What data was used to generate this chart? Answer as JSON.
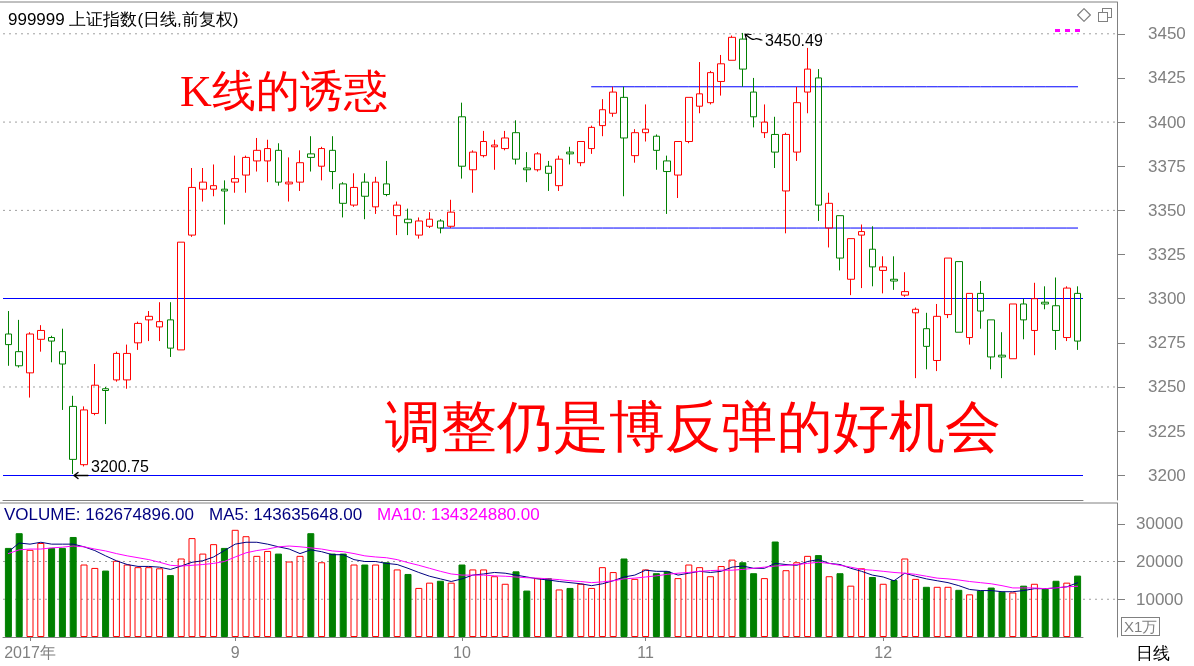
{
  "chart_data": [
    {
      "type": "candlestick",
      "title": "999999 上证指数(日线,前复权)",
      "categories": [
        null,
        null,
        null,
        null,
        null,
        null,
        null,
        null,
        null,
        null,
        null,
        null,
        null,
        null,
        null,
        null,
        null,
        null,
        null,
        null,
        null,
        null,
        null,
        null,
        null,
        null,
        null,
        null,
        null,
        null,
        null,
        null,
        null,
        null,
        null,
        null,
        null,
        null,
        null,
        null,
        null,
        null,
        null,
        null,
        null,
        null,
        null,
        null,
        null,
        null,
        null,
        null,
        null,
        null,
        null,
        null,
        null,
        null,
        null,
        null,
        null,
        null,
        null,
        null,
        null,
        null,
        null,
        null,
        null,
        null,
        null,
        null,
        null,
        null,
        null,
        null,
        null,
        null,
        null,
        null,
        null,
        null,
        null,
        null,
        null,
        null,
        null,
        null,
        null,
        null,
        null,
        null,
        null,
        null,
        null,
        null,
        null,
        null,
        null,
        null
      ],
      "series": [
        {
          "ohlc": [
            [
              3280,
              3293,
              3262,
              3274
            ],
            [
              3270,
              3288,
              3261,
              3262
            ],
            [
              3258,
              3281,
              3244,
              3280
            ],
            [
              3277,
              3285,
              3270,
              3282
            ],
            [
              3278,
              3279,
              3264,
              3276
            ],
            [
              3270,
              3283,
              3237,
              3263
            ],
            [
              3239,
              3245,
              3200.75,
              3209
            ],
            [
              3206,
              3239,
              3205,
              3237
            ],
            [
              3235,
              3263,
              3234,
              3251
            ],
            [
              3249,
              3250,
              3229,
              3248
            ],
            [
              3254,
              3270,
              3253,
              3269
            ],
            [
              3254,
              3274,
              3249,
              3269
            ],
            [
              3275,
              3287,
              3271,
              3286
            ],
            [
              3288,
              3293,
              3276,
              3290
            ],
            [
              3284,
              3298,
              3276,
              3287
            ],
            [
              3288,
              3298,
              3267,
              3272
            ],
            [
              3271,
              3332,
              3271,
              3332
            ],
            [
              3336,
              3374,
              3335,
              3363
            ],
            [
              3362,
              3374,
              3355,
              3366
            ],
            [
              3362,
              3376,
              3358,
              3364
            ],
            [
              3362,
              3367,
              3342,
              3361
            ],
            [
              3366,
              3381,
              3360,
              3368
            ],
            [
              3370,
              3381,
              3360,
              3380
            ],
            [
              3378,
              3391,
              3372,
              3384
            ],
            [
              3378,
              3390,
              3366,
              3385
            ],
            [
              3384,
              3388,
              3364,
              3366
            ],
            [
              3365,
              3380,
              3355,
              3366
            ],
            [
              3366,
              3384,
              3361,
              3377
            ],
            [
              3382,
              3392,
              3372,
              3380
            ],
            [
              3375,
              3386,
              3367,
              3385
            ],
            [
              3384,
              3392,
              3362,
              3372
            ],
            [
              3365,
              3366,
              3346,
              3354
            ],
            [
              3353,
              3371,
              3352,
              3363
            ],
            [
              3366,
              3371,
              3345,
              3358
            ],
            [
              3352,
              3369,
              3348,
              3366
            ],
            [
              3365,
              3378,
              3358,
              3359
            ],
            [
              3347,
              3355,
              3336,
              3353
            ],
            [
              3345,
              3351,
              3336,
              3343
            ],
            [
              3336,
              3346,
              3334,
              3344
            ],
            [
              3341,
              3349,
              3340,
              3345
            ],
            [
              3344,
              3345,
              3337,
              3340
            ],
            [
              3341,
              3356,
              3340,
              3349
            ],
            [
              3403,
              3411,
              3368,
              3375
            ],
            [
              3373,
              3384,
              3360,
              3383
            ],
            [
              3381,
              3395,
              3380,
              3389
            ],
            [
              3386,
              3390,
              3373,
              3387
            ],
            [
              3385,
              3395,
              3384,
              3391
            ],
            [
              3394,
              3401,
              3376,
              3379
            ],
            [
              3374,
              3383,
              3366,
              3373
            ],
            [
              3373,
              3383,
              3372,
              3382
            ],
            [
              3375,
              3378,
              3361,
              3371
            ],
            [
              3364,
              3381,
              3361,
              3379
            ],
            [
              3383,
              3386,
              3376,
              3382
            ],
            [
              3377,
              3389,
              3375,
              3389
            ],
            [
              3385,
              3398,
              3382,
              3397
            ],
            [
              3398,
              3413,
              3392,
              3407
            ],
            [
              3405,
              3420,
              3403,
              3417
            ],
            [
              3414,
              3420,
              3358,
              3391
            ],
            [
              3381,
              3396,
              3377,
              3394
            ],
            [
              3394,
              3410,
              3389,
              3396
            ],
            [
              3392,
              3393,
              3373,
              3384
            ],
            [
              3378,
              3381,
              3348,
              3372
            ],
            [
              3370,
              3389,
              3357,
              3389
            ],
            [
              3389,
              3414,
              3388,
              3414
            ],
            [
              3409,
              3434,
              3405,
              3416
            ],
            [
              3411,
              3429,
              3410,
              3428
            ],
            [
              3423,
              3438,
              3415,
              3433
            ],
            [
              3435,
              3449,
              3435,
              3448
            ],
            [
              3447,
              3450.49,
              3420,
              3430
            ],
            [
              3417,
              3425,
              3397,
              3403
            ],
            [
              3394,
              3410,
              3391,
              3400
            ],
            [
              3393,
              3403,
              3374,
              3383
            ],
            [
              3361,
              3394,
              3337,
              3393
            ],
            [
              3383,
              3420,
              3378,
              3411
            ],
            [
              3417,
              3442,
              3405,
              3430
            ],
            [
              3425,
              3430,
              3344,
              3353
            ],
            [
              3340,
              3360,
              3329,
              3354
            ],
            [
              3347,
              3347,
              3316,
              3323
            ],
            [
              3311,
              3334,
              3302,
              3334
            ],
            [
              3336,
              3342,
              3306,
              3338
            ],
            [
              3328,
              3341,
              3307,
              3318
            ],
            [
              3316,
              3324,
              3303,
              3318
            ],
            [
              3311,
              3324,
              3305,
              3310
            ],
            [
              3302,
              3315,
              3301,
              3304
            ],
            [
              3292,
              3295,
              3255,
              3294
            ],
            [
              3283,
              3292,
              3260,
              3273
            ],
            [
              3265,
              3297,
              3259,
              3290
            ],
            [
              3291,
              3323,
              3289,
              3323
            ],
            [
              3321,
              3321,
              3281,
              3281
            ],
            [
              3278,
              3303,
              3274,
              3303
            ],
            [
              3303,
              3310,
              3283,
              3293
            ],
            [
              3288,
              3288,
              3260,
              3267
            ],
            [
              3268,
              3281,
              3255,
              3267
            ],
            [
              3266,
              3297,
              3266,
              3297
            ],
            [
              3297,
              3300,
              3277,
              3288
            ],
            [
              3282,
              3309,
              3268,
              3300
            ],
            [
              3298,
              3307,
              3294,
              3297
            ],
            [
              3296,
              3312,
              3271,
              3282
            ],
            [
              3278,
              3307,
              3276,
              3306
            ],
            [
              3303,
              3307,
              3271,
              3276
            ]
          ],
          "colors": [
            "#008000",
            "#008000",
            "#ff0000",
            "#ff0000",
            "#008000",
            "#008000",
            "#008000",
            "#ff0000",
            "#ff0000",
            "#008000",
            "#ff0000",
            "#ff0000",
            "#ff0000",
            "#ff0000",
            "#ff0000",
            "#008000",
            "#ff0000",
            "#ff0000",
            "#ff0000",
            "#ff0000",
            "#008000",
            "#ff0000",
            "#ff0000",
            "#ff0000",
            "#ff0000",
            "#008000",
            "#ff0000",
            "#ff0000",
            "#008000",
            "#ff0000",
            "#008000",
            "#008000",
            "#ff0000",
            "#008000",
            "#ff0000",
            "#008000",
            "#ff0000",
            "#008000",
            "#ff0000",
            "#ff0000",
            "#008000",
            "#ff0000",
            "#008000",
            "#ff0000",
            "#ff0000",
            "#ff0000",
            "#ff0000",
            "#008000",
            "#008000",
            "#ff0000",
            "#008000",
            "#ff0000",
            "#008000",
            "#ff0000",
            "#ff0000",
            "#ff0000",
            "#ff0000",
            "#008000",
            "#ff0000",
            "#ff0000",
            "#008000",
            "#008000",
            "#ff0000",
            "#ff0000",
            "#ff0000",
            "#ff0000",
            "#ff0000",
            "#ff0000",
            "#008000",
            "#008000",
            "#ff0000",
            "#008000",
            "#ff0000",
            "#ff0000",
            "#ff0000",
            "#008000",
            "#ff0000",
            "#008000",
            "#ff0000",
            "#ff0000",
            "#008000",
            "#ff0000",
            "#008000",
            "#ff0000",
            "#ff0000",
            "#008000",
            "#ff0000",
            "#ff0000",
            "#008000",
            "#ff0000",
            "#008000",
            "#008000",
            "#008000",
            "#ff0000",
            "#008000",
            "#ff0000",
            "#008000",
            "#008000",
            "#ff0000",
            "#008000"
          ]
        },
        {
          "type": "line",
          "color": "#0000ff",
          "values": [
            null,
            null,
            null,
            null,
            null,
            null,
            null,
            null,
            null,
            null,
            null,
            null,
            null,
            null,
            null,
            null,
            null,
            null,
            null,
            null,
            null,
            null,
            null,
            null,
            null,
            null,
            null,
            null,
            null,
            null,
            null,
            null,
            null,
            null,
            null,
            null,
            null,
            null,
            null,
            null,
            null,
            null,
            null,
            null,
            null,
            null,
            null,
            null,
            null,
            null,
            null,
            null,
            null,
            null,
            3420,
            3420,
            3420,
            3420,
            3420,
            3420,
            3420,
            3420,
            3420,
            3420,
            3420,
            3420,
            3420,
            3420,
            3420,
            3420,
            3420,
            3420,
            3420,
            3420,
            3420,
            3420,
            3420,
            3420,
            3420,
            3420,
            3420,
            3420,
            3420,
            3420,
            3420,
            3420,
            3420,
            3420,
            3420,
            3420,
            3420,
            3420,
            3420,
            3420,
            3420,
            3420,
            3420,
            3420,
            3420,
            3420
          ]
        },
        {
          "type": "line",
          "color": "#0000ff",
          "values": [
            null,
            null,
            null,
            null,
            null,
            null,
            null,
            null,
            null,
            null,
            null,
            null,
            null,
            null,
            null,
            null,
            null,
            null,
            null,
            null,
            null,
            null,
            null,
            null,
            null,
            null,
            null,
            null,
            null,
            null,
            null,
            null,
            null,
            null,
            null,
            null,
            null,
            null,
            null,
            null,
            3340,
            3340,
            3340,
            3340,
            3340,
            3340,
            3340,
            3340,
            3340,
            3340,
            3340,
            3340,
            3340,
            3340,
            3340,
            3340,
            3340,
            3340,
            3340,
            3340,
            3340,
            3340,
            3340,
            3340,
            3340,
            3340,
            3340,
            3340,
            3340,
            3340,
            3340,
            3340,
            3340,
            3340,
            3340,
            3340,
            3340,
            3340,
            3340,
            3340,
            3340,
            3340,
            3340,
            3340,
            3340,
            3340,
            3340,
            3340,
            3340,
            3340,
            3340,
            3340,
            3340,
            3340,
            3340,
            3340,
            3340,
            3340,
            3340,
            3340
          ]
        }
      ],
      "ylim": [
        3186,
        3468
      ],
      "yticks": [
        3200,
        3225,
        3250,
        3275,
        3300,
        3325,
        3350,
        3375,
        3400,
        3425,
        3450
      ],
      "grid": "y",
      "tick_labels": "y",
      "ref_lines": [
        {
          "axis": "y",
          "value": 3300,
          "color": "#0000ff"
        },
        {
          "axis": "y",
          "value": 3200,
          "color": "#0000ff"
        }
      ],
      "annotations": [
        "K线的诱惑",
        "调整仍是博反弹的好机会",
        "3450.49",
        "3200.75"
      ]
    },
    {
      "type": "bar",
      "categories": [
        null,
        null,
        "2017年",
        null,
        null,
        null,
        null,
        null,
        null,
        null,
        null,
        null,
        null,
        null,
        null,
        null,
        null,
        null,
        null,
        null,
        null,
        "9",
        null,
        null,
        null,
        null,
        null,
        null,
        null,
        null,
        null,
        null,
        null,
        null,
        null,
        null,
        null,
        null,
        null,
        null,
        null,
        null,
        "10",
        null,
        null,
        null,
        null,
        null,
        null,
        null,
        null,
        null,
        null,
        null,
        null,
        null,
        null,
        null,
        null,
        "11",
        null,
        null,
        null,
        null,
        null,
        null,
        null,
        null,
        null,
        null,
        null,
        null,
        null,
        null,
        null,
        null,
        null,
        null,
        null,
        null,
        null,
        "12",
        null,
        null,
        null,
        null,
        null,
        null,
        null,
        null,
        null,
        null,
        null,
        null,
        null,
        null,
        null,
        null,
        null,
        null
      ],
      "series": [
        {
          "values": [
            23600,
            27500,
            23100,
            24900,
            23600,
            23600,
            26500,
            19200,
            18300,
            17600,
            20200,
            19200,
            18500,
            18500,
            18200,
            16400,
            20800,
            26200,
            22100,
            24600,
            23600,
            28400,
            26700,
            21500,
            22800,
            22100,
            20000,
            21500,
            27500,
            19800,
            22100,
            22100,
            19200,
            19200,
            19200,
            19800,
            17900,
            16700,
            13000,
            14400,
            14900,
            14400,
            19200,
            17900,
            17900,
            16100,
            14100,
            17400,
            12300,
            15600,
            15600,
            12600,
            13000,
            14100,
            13000,
            18500,
            17200,
            20800,
            15400,
            17900,
            16900,
            17400,
            15600,
            19200,
            18500,
            16100,
            18800,
            20500,
            19800,
            16900,
            15600,
            25300,
            17700,
            19800,
            21500,
            21700,
            16100,
            16900,
            13600,
            18200,
            15900,
            14100,
            15100,
            20800,
            15400,
            13300,
            13300,
            13300,
            12500,
            11300,
            12300,
            13100,
            12000,
            11800,
            13600,
            14100,
            12800,
            14900,
            14400,
            16267.4896
          ],
          "colors": [
            "#008000",
            "#008000",
            "#ff0000",
            "#ff0000",
            "#008000",
            "#008000",
            "#008000",
            "#ff0000",
            "#ff0000",
            "#008000",
            "#ff0000",
            "#ff0000",
            "#ff0000",
            "#ff0000",
            "#ff0000",
            "#008000",
            "#ff0000",
            "#ff0000",
            "#ff0000",
            "#ff0000",
            "#008000",
            "#ff0000",
            "#ff0000",
            "#ff0000",
            "#ff0000",
            "#008000",
            "#ff0000",
            "#ff0000",
            "#008000",
            "#ff0000",
            "#008000",
            "#008000",
            "#ff0000",
            "#008000",
            "#ff0000",
            "#008000",
            "#ff0000",
            "#008000",
            "#ff0000",
            "#ff0000",
            "#008000",
            "#ff0000",
            "#008000",
            "#ff0000",
            "#ff0000",
            "#ff0000",
            "#ff0000",
            "#008000",
            "#008000",
            "#ff0000",
            "#008000",
            "#ff0000",
            "#008000",
            "#ff0000",
            "#ff0000",
            "#ff0000",
            "#ff0000",
            "#008000",
            "#ff0000",
            "#ff0000",
            "#008000",
            "#008000",
            "#ff0000",
            "#ff0000",
            "#ff0000",
            "#ff0000",
            "#ff0000",
            "#ff0000",
            "#008000",
            "#008000",
            "#ff0000",
            "#008000",
            "#ff0000",
            "#ff0000",
            "#ff0000",
            "#008000",
            "#ff0000",
            "#008000",
            "#ff0000",
            "#ff0000",
            "#008000",
            "#ff0000",
            "#008000",
            "#ff0000",
            "#ff0000",
            "#008000",
            "#ff0000",
            "#ff0000",
            "#008000",
            "#ff0000",
            "#008000",
            "#008000",
            "#008000",
            "#ff0000",
            "#008000",
            "#ff0000",
            "#008000",
            "#008000",
            "#ff0000",
            "#008000"
          ]
        },
        {
          "type": "line",
          "name": "MA5: 143635648.00",
          "color": "#000080",
          "values": [
            22600,
            24900,
            24600,
            25100,
            24600,
            24600,
            24600,
            23900,
            22900,
            21500,
            20200,
            19200,
            18700,
            18700,
            18500,
            17900,
            18800,
            19800,
            20200,
            21200,
            22900,
            24600,
            25100,
            25100,
            24600,
            23900,
            23300,
            22100,
            23100,
            22600,
            21800,
            21800,
            20500,
            20000,
            20000,
            19500,
            19200,
            18200,
            17100,
            16100,
            15400,
            14700,
            15400,
            16400,
            16700,
            17100,
            16900,
            16400,
            15900,
            15400,
            15100,
            14700,
            14400,
            14100,
            13600,
            14100,
            14900,
            15900,
            16400,
            17700,
            17400,
            17400,
            16400,
            16900,
            17400,
            17100,
            17400,
            18500,
            18800,
            18200,
            18200,
            19500,
            19200,
            19000,
            20000,
            20500,
            19500,
            19200,
            18200,
            17400,
            16400,
            15900,
            14900,
            16900,
            16100,
            15400,
            14900,
            14400,
            13600,
            12600,
            12300,
            12300,
            12000,
            12000,
            12300,
            12800,
            12800,
            13000,
            13300,
            14363.5648
          ]
        },
        {
          "type": "line",
          "name": "MA10: 134324880.00",
          "color": "#ff00ff",
          "values": [
            22100,
            23100,
            23300,
            23300,
            23600,
            23800,
            24100,
            23900,
            23300,
            22800,
            22100,
            21500,
            21000,
            20500,
            19800,
            19000,
            18800,
            19000,
            19200,
            19500,
            20000,
            21200,
            22300,
            22900,
            23300,
            23900,
            24100,
            23900,
            23600,
            23300,
            22800,
            22600,
            22100,
            21500,
            21200,
            21000,
            20500,
            19700,
            19000,
            18200,
            17400,
            16700,
            16400,
            16400,
            16400,
            16200,
            16100,
            15900,
            15700,
            15600,
            15400,
            15200,
            14900,
            14700,
            14400,
            14600,
            14900,
            15400,
            15600,
            15900,
            16200,
            16600,
            16900,
            17100,
            17400,
            17600,
            17700,
            17700,
            17900,
            18200,
            18500,
            18800,
            19000,
            19200,
            19500,
            19800,
            19500,
            19000,
            18500,
            17900,
            17700,
            17400,
            17100,
            16900,
            16600,
            16100,
            15600,
            15400,
            15100,
            14700,
            14400,
            14100,
            13600,
            13000,
            13000,
            13000,
            12800,
            13000,
            13300,
            13432.488
          ]
        }
      ],
      "ylabel": "X1万",
      "ylim": [
        0,
        35500
      ],
      "yticks": [
        10000,
        20000,
        30000
      ],
      "grid": "y",
      "legend": "top left",
      "annotations": [
        "VOLUME: 162674896.00",
        "日线"
      ]
    }
  ]
}
